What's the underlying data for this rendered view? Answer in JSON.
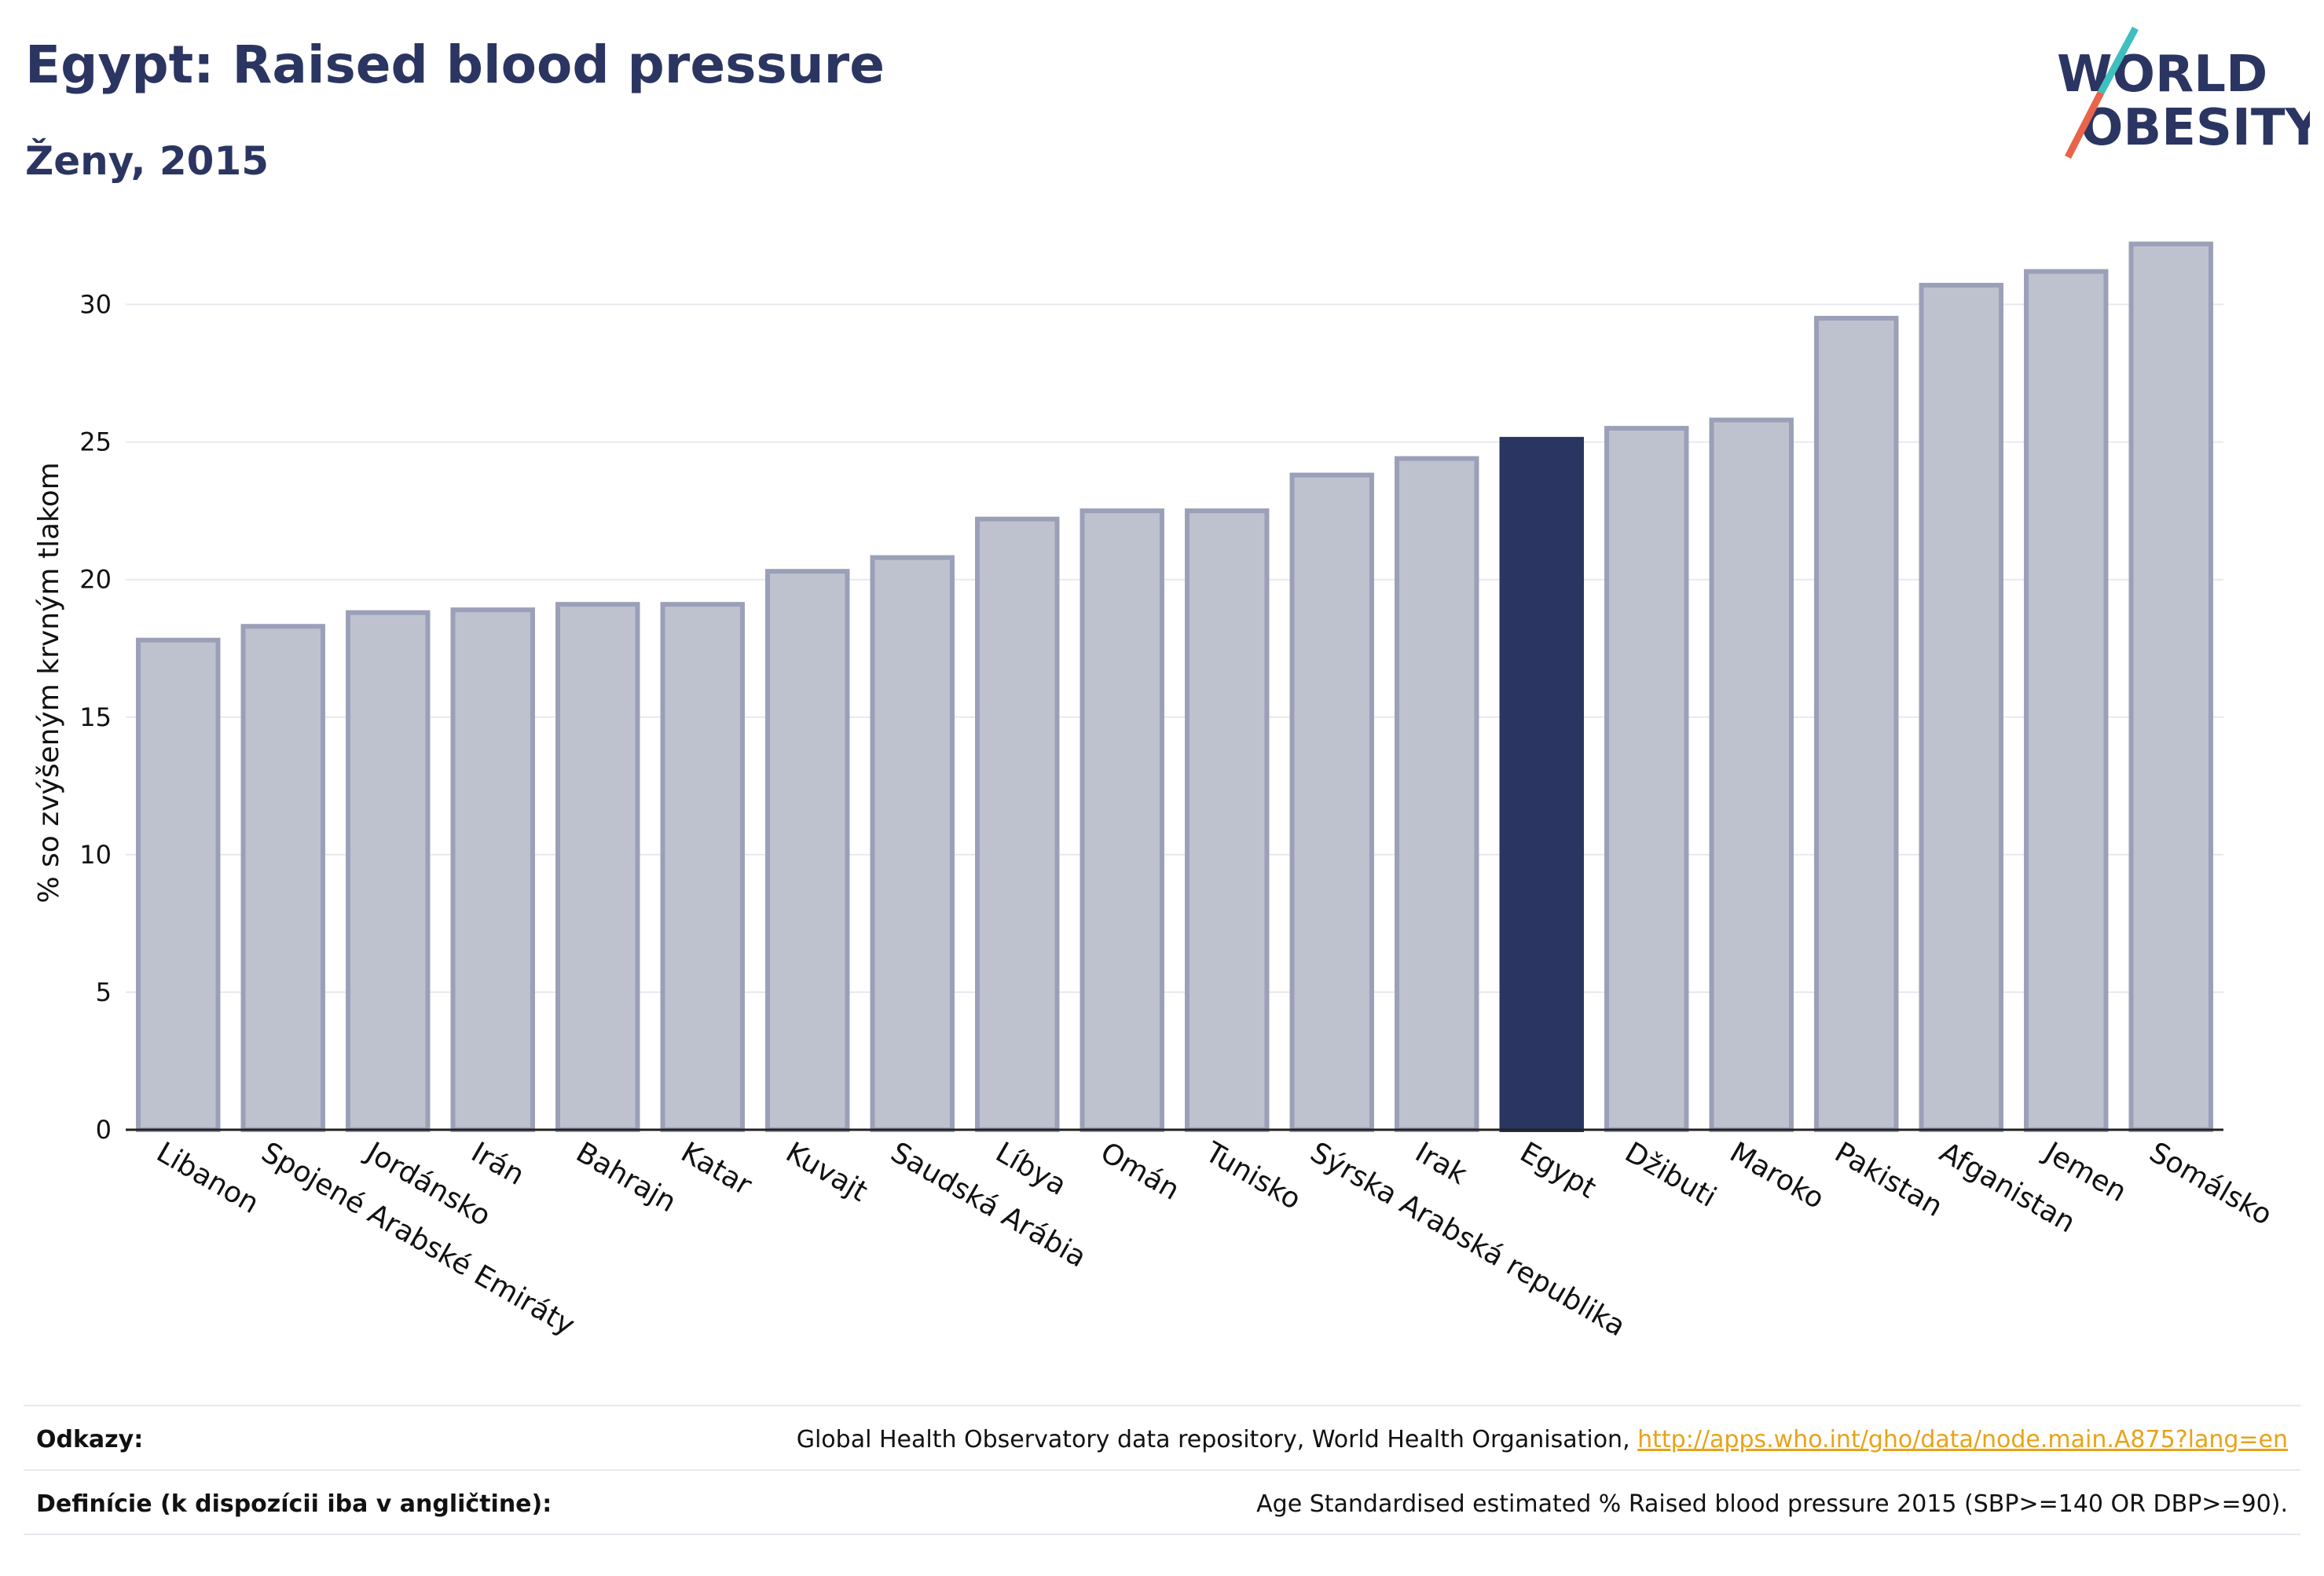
{
  "title": "Egypt: Raised blood pressure",
  "subtitle": "Ženy, 2015",
  "logo": {
    "line1": "WORLD",
    "line2": "OBESITY"
  },
  "colors": {
    "highlight": "#2b3561",
    "bar_fill": "#bec2cf",
    "bar_stroke": "#9ba0b8",
    "grid": "#e8e9ef",
    "text": "#111111",
    "link": "#e8a317",
    "logo_teal": "#3fbfbf",
    "logo_red": "#e8644a"
  },
  "chart_data": {
    "type": "bar",
    "ylabel": "% so zvýšeným krvným tlakom",
    "xlabel": "",
    "ylim": [
      0,
      32.5
    ],
    "yticks": [
      0,
      5,
      10,
      15,
      20,
      25,
      30
    ],
    "grid": true,
    "highlight_category": "Egypt",
    "categories": [
      "Libanon",
      "Spojené Arabské Emiráty",
      "Jordánsko",
      "Irán",
      "Bahrajn",
      "Katar",
      "Kuvajt",
      "Saudská Arábia",
      "Líbya",
      "Omán",
      "Tunisko",
      "Sýrska Arabská republika",
      "Irak",
      "Egypt",
      "Džibuti",
      "Maroko",
      "Pakistan",
      "Afganistan",
      "Jemen",
      "Somálsko"
    ],
    "values": [
      17.8,
      18.3,
      18.8,
      18.9,
      19.1,
      19.1,
      20.3,
      20.8,
      22.2,
      22.5,
      22.5,
      23.8,
      24.4,
      25.1,
      25.5,
      25.8,
      29.5,
      30.7,
      31.2,
      32.2
    ]
  },
  "references": {
    "label": "Odkazy:",
    "text": "Global Health Observatory data repository, World Health Organisation, ",
    "link": "http://apps.who.int/gho/data/node.main.A875?lang=en"
  },
  "definitions": {
    "label": "Definície (k dispozícii iba v angličtine):",
    "text": "Age Standardised estimated % Raised blood pressure 2015 (SBP>=140 OR DBP>=90)."
  }
}
